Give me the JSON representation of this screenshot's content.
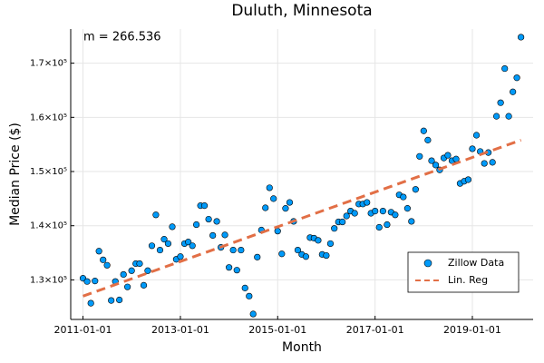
{
  "chart_data": {
    "type": "scatter",
    "title": "Duluth, Minnesota",
    "xlabel": "Month",
    "ylabel": "Median Price ($)",
    "annotation": "m = 266.536",
    "x_type": "date",
    "xlim": [
      "2010-10-01",
      "2020-04-01"
    ],
    "xticks": [
      "2011-01-01",
      "2013-01-01",
      "2015-01-01",
      "2017-01-01",
      "2019-01-01"
    ],
    "ylim": [
      122700,
      176300
    ],
    "yticks": [
      {
        "value": 130000,
        "label": "1.3×10⁵"
      },
      {
        "value": 140000,
        "label": "1.4×10⁵"
      },
      {
        "value": 150000,
        "label": "1.5×10⁵"
      },
      {
        "value": 160000,
        "label": "1.6×10⁵"
      },
      {
        "value": 170000,
        "label": "1.7×10⁵"
      }
    ],
    "grid": true,
    "legend_position": "bottom right",
    "series": [
      {
        "name": "Zillow Data",
        "kind": "scatter",
        "color": "#009af9",
        "x": [
          "2011-01-01",
          "2011-02-01",
          "2011-03-01",
          "2011-04-01",
          "2011-05-01",
          "2011-06-01",
          "2011-07-01",
          "2011-08-01",
          "2011-09-01",
          "2011-10-01",
          "2011-11-01",
          "2011-12-01",
          "2012-01-01",
          "2012-02-01",
          "2012-03-01",
          "2012-04-01",
          "2012-05-01",
          "2012-06-01",
          "2012-07-01",
          "2012-08-01",
          "2012-09-01",
          "2012-10-01",
          "2012-11-01",
          "2012-12-01",
          "2013-01-01",
          "2013-02-01",
          "2013-03-01",
          "2013-04-01",
          "2013-05-01",
          "2013-06-01",
          "2013-07-01",
          "2013-08-01",
          "2013-09-01",
          "2013-10-01",
          "2013-11-01",
          "2013-12-01",
          "2014-01-01",
          "2014-02-01",
          "2014-03-01",
          "2014-04-01",
          "2014-05-01",
          "2014-06-01",
          "2014-07-01",
          "2014-08-01",
          "2014-09-01",
          "2014-10-01",
          "2014-11-01",
          "2014-12-01",
          "2015-01-01",
          "2015-02-01",
          "2015-03-01",
          "2015-04-01",
          "2015-05-01",
          "2015-06-01",
          "2015-07-01",
          "2015-08-01",
          "2015-09-01",
          "2015-10-01",
          "2015-11-01",
          "2015-12-01",
          "2016-01-01",
          "2016-02-01",
          "2016-03-01",
          "2016-04-01",
          "2016-05-01",
          "2016-06-01",
          "2016-07-01",
          "2016-08-01",
          "2016-09-01",
          "2016-10-01",
          "2016-11-01",
          "2016-12-01",
          "2017-01-01",
          "2017-02-01",
          "2017-03-01",
          "2017-04-01",
          "2017-05-01",
          "2017-06-01",
          "2017-07-01",
          "2017-08-01",
          "2017-09-01",
          "2017-10-01",
          "2017-11-01",
          "2017-12-01",
          "2018-01-01",
          "2018-02-01",
          "2018-03-01",
          "2018-04-01",
          "2018-05-01",
          "2018-06-01",
          "2018-07-01",
          "2018-08-01",
          "2018-09-01",
          "2018-10-01",
          "2018-11-01",
          "2018-12-01",
          "2019-01-01",
          "2019-02-01",
          "2019-03-01",
          "2019-04-01",
          "2019-05-01",
          "2019-06-01",
          "2019-07-01",
          "2019-08-01",
          "2019-09-01",
          "2019-10-01",
          "2019-11-01",
          "2019-12-01",
          "2020-01-01"
        ],
        "values": [
          130300,
          129700,
          125700,
          129800,
          135300,
          133700,
          132700,
          126200,
          129700,
          126300,
          131000,
          128700,
          131700,
          133000,
          133000,
          129000,
          131700,
          136300,
          142000,
          135500,
          137500,
          136700,
          139800,
          133800,
          134300,
          136700,
          137000,
          136300,
          140200,
          143700,
          143700,
          141200,
          138200,
          140800,
          136000,
          138300,
          132300,
          135500,
          131800,
          135500,
          128500,
          127000,
          123700,
          134200,
          139200,
          143300,
          147000,
          145000,
          139000,
          134800,
          143200,
          144300,
          140800,
          135500,
          134700,
          134300,
          137800,
          137700,
          137300,
          134700,
          134500,
          136700,
          139500,
          140700,
          140700,
          141800,
          142700,
          142300,
          144000,
          144000,
          144300,
          142300,
          142700,
          139700,
          142700,
          140200,
          142500,
          142000,
          145700,
          145300,
          143200,
          140800,
          146700,
          152800,
          157500,
          155800,
          152000,
          151200,
          150300,
          152500,
          153000,
          152000,
          152300,
          147800,
          148200,
          148500,
          154200,
          156700,
          153700,
          151500,
          153500,
          151700,
          160200,
          162700,
          169000,
          160200,
          164700,
          167300,
          174800
        ]
      },
      {
        "name": "Lin. Reg",
        "kind": "line",
        "color": "#e26f46",
        "x": [
          "2011-01-01",
          "2020-01-01"
        ],
        "values": [
          127000,
          155800
        ]
      }
    ]
  }
}
